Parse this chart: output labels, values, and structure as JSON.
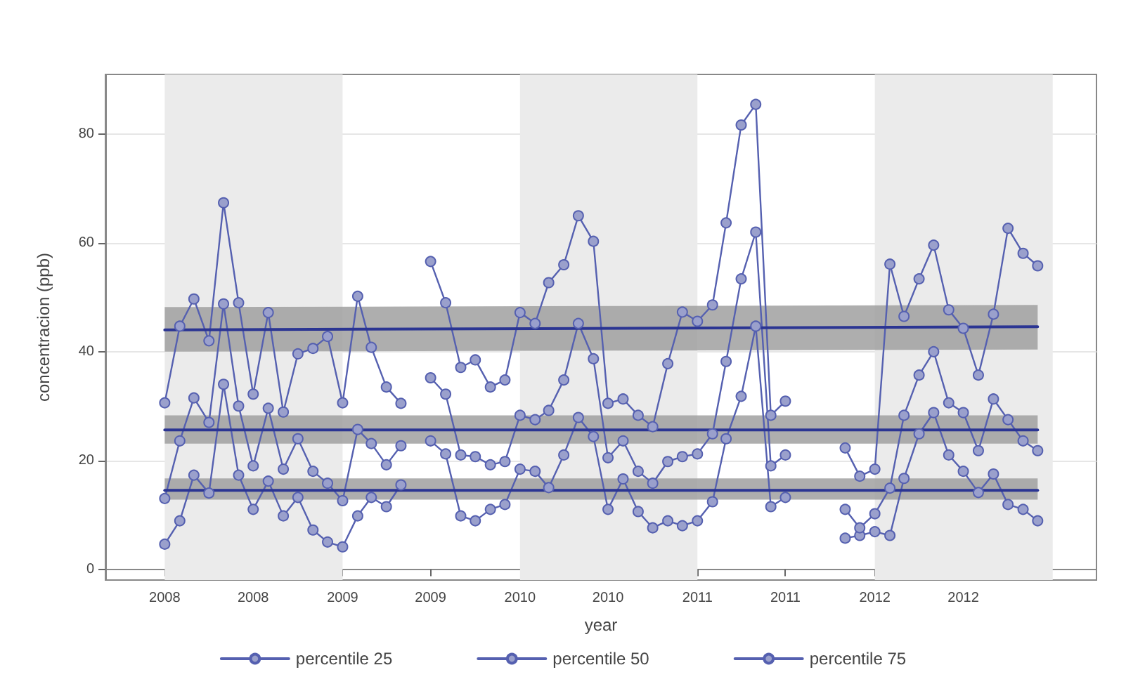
{
  "chart_data": {
    "type": "line",
    "xlabel": "year",
    "ylabel": "concentracion (ppb)",
    "x": [
      "2008-01",
      "2008-02",
      "2008-03",
      "2008-04",
      "2008-05",
      "2008-06",
      "2008-07",
      "2008-08",
      "2008-09",
      "2008-10",
      "2008-11",
      "2008-12",
      "2009-01",
      "2009-02",
      "2009-03",
      "2009-04",
      "2009-05",
      "2009-06",
      "2009-07",
      "2009-08",
      "2009-09",
      "2009-10",
      "2009-11",
      "2009-12",
      "2010-01",
      "2010-02",
      "2010-03",
      "2010-04",
      "2010-05",
      "2010-06",
      "2010-07",
      "2010-08",
      "2010-09",
      "2010-10",
      "2010-11",
      "2010-12",
      "2011-01",
      "2011-02",
      "2011-03",
      "2011-04",
      "2011-05",
      "2011-06",
      "2011-07",
      "2011-08",
      "2011-09",
      "2011-10",
      "2011-11",
      "2011-12",
      "2012-01",
      "2012-02",
      "2012-03",
      "2012-04",
      "2012-05",
      "2012-06",
      "2012-07",
      "2012-08",
      "2012-09",
      "2012-10",
      "2012-11",
      "2012-12"
    ],
    "series": [
      {
        "name": "percentile 25",
        "color": "#5560b0",
        "values": [
          4.6,
          8.9,
          17.3,
          14,
          34,
          17.3,
          11,
          16.2,
          9.8,
          13.2,
          7.2,
          5,
          4.1,
          9.8,
          13.2,
          11.5,
          15.5,
          null,
          23.6,
          21.2,
          9.8,
          8.9,
          11,
          11.9,
          18.4,
          18,
          15,
          21,
          27.9,
          24.4,
          11,
          16.6,
          10.6,
          7.6,
          8.9,
          8,
          8.9,
          12.4,
          24,
          31.8,
          44.7,
          11.5,
          13.2,
          null,
          null,
          null,
          5.7,
          6.2,
          6.9,
          6.2,
          16.7,
          24.9,
          28.8,
          21,
          18,
          14.1,
          17.5,
          11.9,
          11,
          8.9
        ]
      },
      {
        "name": "percentile 50",
        "color": "#5560b0",
        "values": [
          13,
          23.6,
          31.5,
          27,
          48.8,
          30,
          19,
          29.6,
          18.4,
          24,
          18,
          15.8,
          12.6,
          25.7,
          23.1,
          19.2,
          22.7,
          null,
          35.2,
          32.2,
          21,
          20.7,
          19.2,
          19.8,
          28.3,
          27.5,
          29.2,
          34.8,
          45.2,
          38.7,
          20.5,
          23.6,
          18,
          15.8,
          19.8,
          20.7,
          21.2,
          24.9,
          38.2,
          53.4,
          62,
          19,
          21,
          null,
          null,
          null,
          11,
          7.6,
          10.2,
          14.9,
          28.3,
          35.7,
          40,
          30.6,
          28.8,
          21.8,
          31.3,
          27.5,
          23.6,
          21.8
        ]
      },
      {
        "name": "percentile 75",
        "color": "#5560b0",
        "values": [
          30.6,
          44.7,
          49.7,
          42,
          67.4,
          49,
          32.2,
          47.2,
          28.9,
          39.6,
          40.6,
          42.8,
          30.6,
          50.2,
          40.8,
          33.5,
          30.5,
          null,
          56.6,
          49,
          37.1,
          38.5,
          33.5,
          34.8,
          47.2,
          45.2,
          52.7,
          56,
          65,
          60.3,
          30.5,
          31.3,
          28.3,
          26.2,
          37.8,
          47.3,
          45.6,
          48.6,
          63.7,
          81.7,
          85.5,
          28.3,
          30.9,
          null,
          null,
          null,
          22.3,
          17.1,
          18.4,
          56.1,
          46.5,
          53.4,
          59.6,
          47.7,
          44.3,
          35.7,
          46.9,
          62.7,
          58.1,
          55.8
        ]
      },
      {
        "type": "line",
        "marker": "none",
        "color": "#2b3593",
        "x": [
          "2008-01",
          "2012-12"
        ],
        "values": [
          14.5,
          14.5
        ],
        "lower": [
          12.8,
          12.8
        ],
        "upper": [
          16.7,
          16.7
        ]
      },
      {
        "type": "line",
        "marker": "none",
        "color": "#2b3593",
        "x": [
          "2008-01",
          "2012-12"
        ],
        "values": [
          25.6,
          25.6
        ],
        "lower": [
          23.1,
          23.1
        ],
        "upper": [
          28.3,
          28.3
        ]
      },
      {
        "type": "line",
        "marker": "none",
        "color": "#2b3593",
        "x": [
          "2008-01",
          "2012-12"
        ],
        "values": [
          44,
          44.6
        ],
        "lower": [
          40,
          40.4
        ],
        "upper": [
          48.2,
          48.6
        ]
      }
    ],
    "xlim": [
      "2007-09",
      "2013-04"
    ],
    "xticks": [
      {
        "value": "2008-01",
        "label": "2008"
      },
      {
        "value": "2008-07",
        "label": "2008"
      },
      {
        "value": "2009-01",
        "label": "2009"
      },
      {
        "value": "2009-07",
        "label": "2009"
      },
      {
        "value": "2010-01",
        "label": "2010"
      },
      {
        "value": "2010-07",
        "label": "2010"
      },
      {
        "value": "2011-01",
        "label": "2011"
      },
      {
        "value": "2011-07",
        "label": "2011"
      },
      {
        "value": "2012-01",
        "label": "2012"
      },
      {
        "value": "2012-07",
        "label": "2012"
      }
    ],
    "ylim": [
      -2,
      91
    ],
    "yticks": [
      0,
      20,
      40,
      60,
      80
    ],
    "bands": [
      {
        "axis": "x",
        "from": "2008-01",
        "to": "2009-01",
        "color": "#ebebeb"
      },
      {
        "axis": "x",
        "from": "2010-01",
        "to": "2011-01",
        "color": "#ebebeb"
      },
      {
        "axis": "x",
        "from": "2012-01",
        "to": "2013-01",
        "color": "#ebebeb"
      }
    ],
    "grid": "y",
    "legend": "bottom",
    "marker": "circle",
    "line_style": "solid"
  }
}
